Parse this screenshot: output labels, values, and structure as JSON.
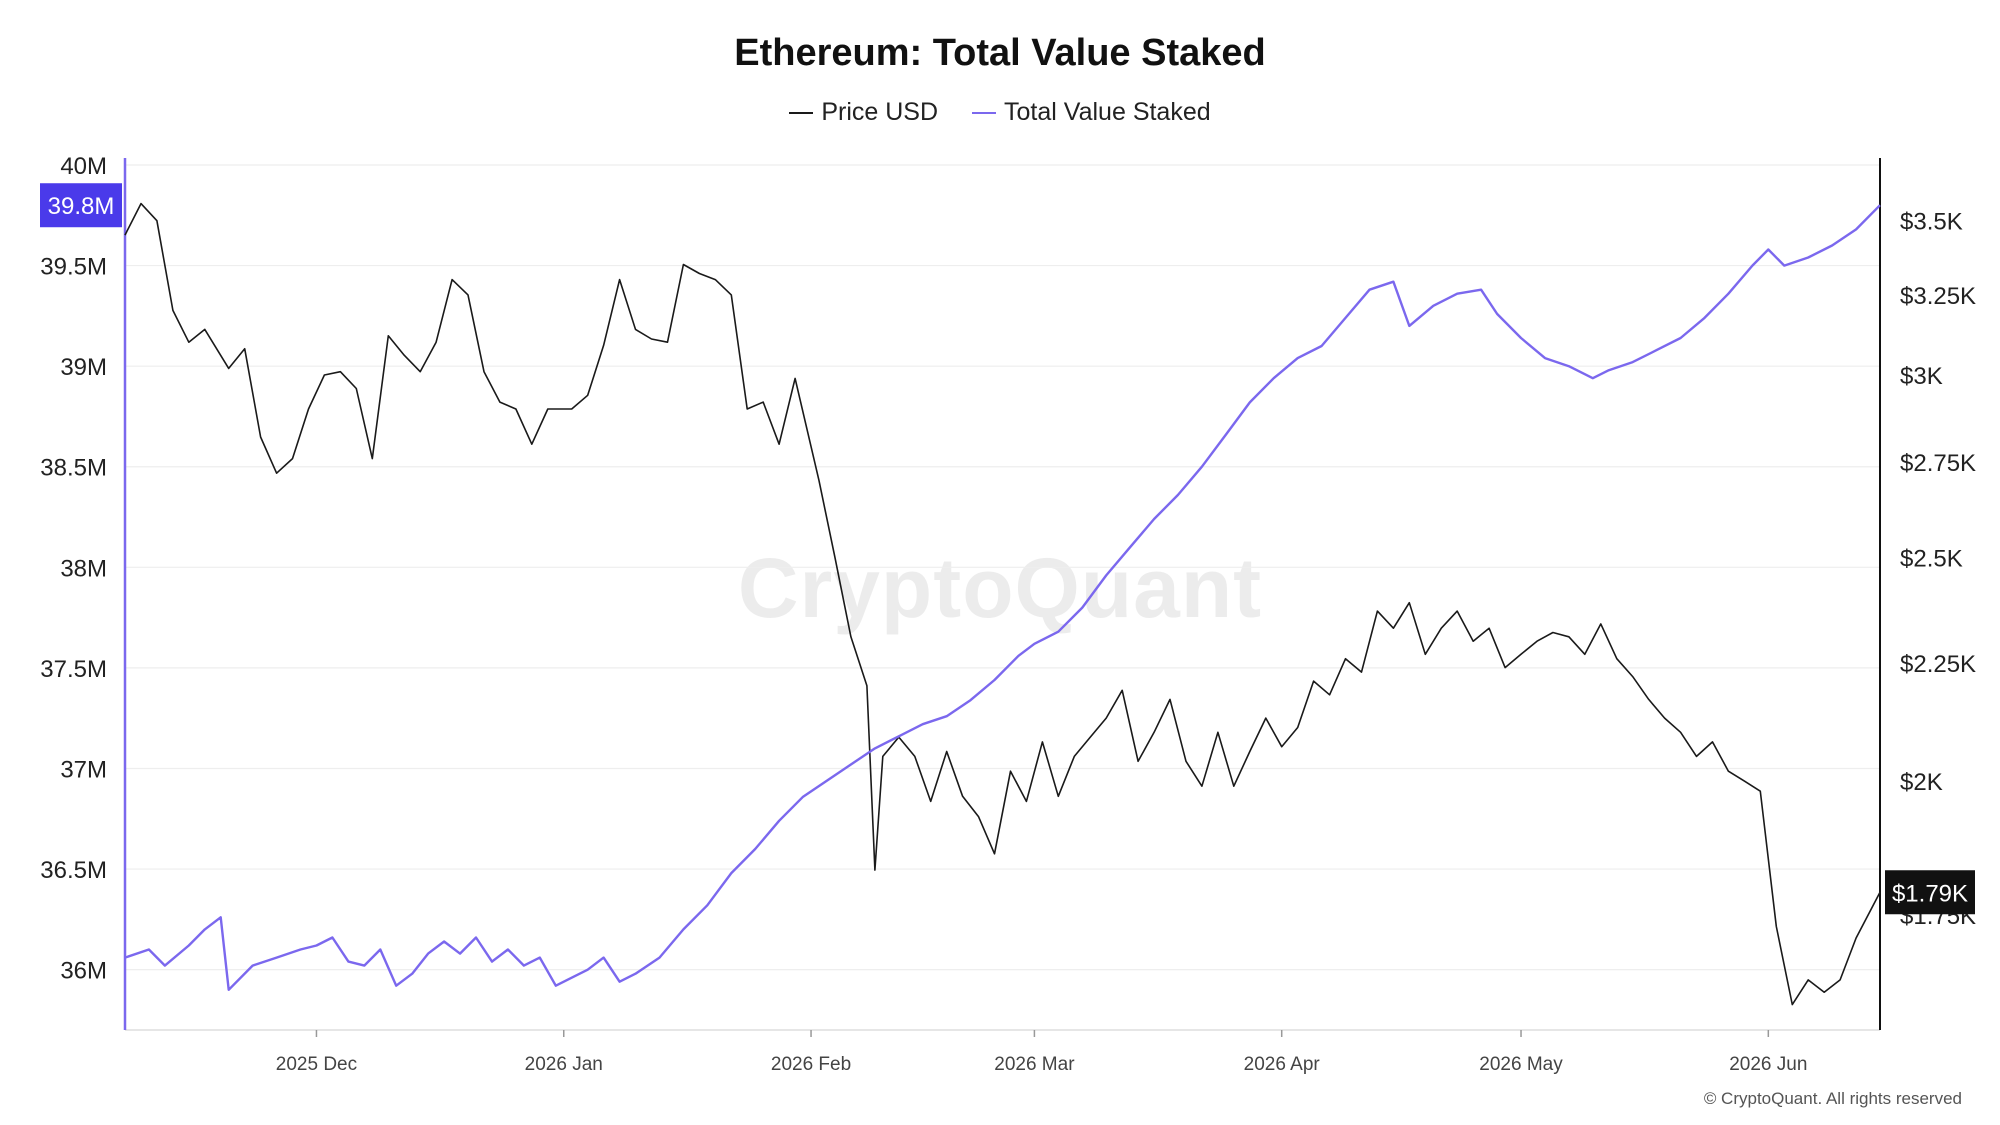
{
  "colors": {
    "price": "#1a1a1a",
    "staked": "#7b68ee",
    "left_axis": "#7b68ee",
    "left_badge": "#4a3aea",
    "right_badge": "#111111",
    "grid": "#eeeeee"
  },
  "header": {
    "title": "Ethereum: Total Value Staked"
  },
  "legend": {
    "items": [
      {
        "label": "Price USD",
        "color": "#1a1a1a"
      },
      {
        "label": "Total Value Staked",
        "color": "#7b68ee"
      }
    ]
  },
  "watermark": "CryptoQuant",
  "footer": {
    "copyright": "© CryptoQuant. All rights reserved"
  },
  "chart_data": {
    "type": "line",
    "title": "Ethereum: Total Value Staked",
    "grid": true,
    "legend_position": "top-center",
    "x_range": [
      "2025-11-07",
      "2026-06-15"
    ],
    "x_ticks": [
      {
        "date": "2025-12-01",
        "label": "2025 Dec"
      },
      {
        "date": "2026-01-01",
        "label": "2026 Jan"
      },
      {
        "date": "2026-02-01",
        "label": "2026 Feb"
      },
      {
        "date": "2026-03-01",
        "label": "2026 Mar"
      },
      {
        "date": "2026-04-01",
        "label": "2026 Apr"
      },
      {
        "date": "2026-05-01",
        "label": "2026 May"
      },
      {
        "date": "2026-06-01",
        "label": "2026 Jun"
      }
    ],
    "left_axis": {
      "ylim": [
        35.7,
        40.0
      ],
      "unit": "M",
      "ticks": [
        {
          "value": 36,
          "label": "36M"
        },
        {
          "value": 36.5,
          "label": "36.5M"
        },
        {
          "value": 37,
          "label": "37M"
        },
        {
          "value": 37.5,
          "label": "37.5M"
        },
        {
          "value": 38,
          "label": "38M"
        },
        {
          "value": 38.5,
          "label": "38.5M"
        },
        {
          "value": 39,
          "label": "39M"
        },
        {
          "value": 39.5,
          "label": "39.5M"
        },
        {
          "value": 40,
          "label": "40M"
        }
      ],
      "current_label": "39.8M",
      "current_value": 39.8
    },
    "right_axis": {
      "scale": "log",
      "ylim": [
        1560,
        3700
      ],
      "ticks": [
        {
          "value": 1750,
          "label": "$1.75K"
        },
        {
          "value": 2000,
          "label": "$2K"
        },
        {
          "value": 2250,
          "label": "$2.25K"
        },
        {
          "value": 2500,
          "label": "$2.5K"
        },
        {
          "value": 2750,
          "label": "$2.75K"
        },
        {
          "value": 3000,
          "label": "$3K"
        },
        {
          "value": 3250,
          "label": "$3.25K"
        },
        {
          "value": 3500,
          "label": "$3.5K"
        }
      ],
      "current_label": "$1.79K",
      "current_value": 1790
    },
    "series": [
      {
        "name": "Price USD",
        "axis": "right",
        "points": [
          [
            "2025-11-07",
            3450
          ],
          [
            "2025-11-09",
            3560
          ],
          [
            "2025-11-11",
            3500
          ],
          [
            "2025-11-13",
            3200
          ],
          [
            "2025-11-15",
            3100
          ],
          [
            "2025-11-17",
            3140
          ],
          [
            "2025-11-20",
            3020
          ],
          [
            "2025-11-22",
            3080
          ],
          [
            "2025-11-24",
            2820
          ],
          [
            "2025-11-26",
            2720
          ],
          [
            "2025-11-28",
            2760
          ],
          [
            "2025-11-30",
            2900
          ],
          [
            "2025-12-02",
            3000
          ],
          [
            "2025-12-04",
            3010
          ],
          [
            "2025-12-06",
            2960
          ],
          [
            "2025-12-08",
            2760
          ],
          [
            "2025-12-10",
            3120
          ],
          [
            "2025-12-12",
            3060
          ],
          [
            "2025-12-14",
            3010
          ],
          [
            "2025-12-16",
            3100
          ],
          [
            "2025-12-18",
            3300
          ],
          [
            "2025-12-20",
            3250
          ],
          [
            "2025-12-22",
            3010
          ],
          [
            "2025-12-24",
            2920
          ],
          [
            "2025-12-26",
            2900
          ],
          [
            "2025-12-28",
            2800
          ],
          [
            "2025-12-30",
            2900
          ],
          [
            "2026-01-02",
            2900
          ],
          [
            "2026-01-04",
            2940
          ],
          [
            "2026-01-06",
            3090
          ],
          [
            "2026-01-08",
            3300
          ],
          [
            "2026-01-10",
            3140
          ],
          [
            "2026-01-12",
            3110
          ],
          [
            "2026-01-14",
            3100
          ],
          [
            "2026-01-16",
            3350
          ],
          [
            "2026-01-18",
            3320
          ],
          [
            "2026-01-20",
            3300
          ],
          [
            "2026-01-22",
            3250
          ],
          [
            "2026-01-24",
            2900
          ],
          [
            "2026-01-26",
            2920
          ],
          [
            "2026-01-28",
            2800
          ],
          [
            "2026-01-30",
            2990
          ],
          [
            "2026-02-02",
            2700
          ],
          [
            "2026-02-04",
            2500
          ],
          [
            "2026-02-06",
            2310
          ],
          [
            "2026-02-08",
            2200
          ],
          [
            "2026-02-09",
            1830
          ],
          [
            "2026-02-10",
            2050
          ],
          [
            "2026-02-12",
            2090
          ],
          [
            "2026-02-14",
            2050
          ],
          [
            "2026-02-16",
            1960
          ],
          [
            "2026-02-18",
            2060
          ],
          [
            "2026-02-20",
            1970
          ],
          [
            "2026-02-22",
            1930
          ],
          [
            "2026-02-24",
            1860
          ],
          [
            "2026-02-26",
            2020
          ],
          [
            "2026-02-28",
            1960
          ],
          [
            "2026-03-02",
            2080
          ],
          [
            "2026-03-04",
            1970
          ],
          [
            "2026-03-06",
            2050
          ],
          [
            "2026-03-08",
            2090
          ],
          [
            "2026-03-10",
            2130
          ],
          [
            "2026-03-12",
            2190
          ],
          [
            "2026-03-14",
            2040
          ],
          [
            "2026-03-16",
            2100
          ],
          [
            "2026-03-18",
            2170
          ],
          [
            "2026-03-20",
            2040
          ],
          [
            "2026-03-22",
            1990
          ],
          [
            "2026-03-24",
            2100
          ],
          [
            "2026-03-26",
            1990
          ],
          [
            "2026-03-28",
            2060
          ],
          [
            "2026-03-30",
            2130
          ],
          [
            "2026-04-01",
            2070
          ],
          [
            "2026-04-03",
            2110
          ],
          [
            "2026-04-05",
            2210
          ],
          [
            "2026-04-07",
            2180
          ],
          [
            "2026-04-09",
            2260
          ],
          [
            "2026-04-11",
            2230
          ],
          [
            "2026-04-13",
            2370
          ],
          [
            "2026-04-15",
            2330
          ],
          [
            "2026-04-17",
            2390
          ],
          [
            "2026-04-19",
            2270
          ],
          [
            "2026-04-21",
            2330
          ],
          [
            "2026-04-23",
            2370
          ],
          [
            "2026-04-25",
            2300
          ],
          [
            "2026-04-27",
            2330
          ],
          [
            "2026-04-29",
            2240
          ],
          [
            "2026-05-01",
            2270
          ],
          [
            "2026-05-03",
            2300
          ],
          [
            "2026-05-05",
            2320
          ],
          [
            "2026-05-07",
            2310
          ],
          [
            "2026-05-09",
            2270
          ],
          [
            "2026-05-11",
            2340
          ],
          [
            "2026-05-13",
            2260
          ],
          [
            "2026-05-15",
            2220
          ],
          [
            "2026-05-17",
            2170
          ],
          [
            "2026-05-19",
            2130
          ],
          [
            "2026-05-21",
            2100
          ],
          [
            "2026-05-23",
            2050
          ],
          [
            "2026-05-25",
            2080
          ],
          [
            "2026-05-27",
            2020
          ],
          [
            "2026-05-29",
            2000
          ],
          [
            "2026-05-31",
            1980
          ],
          [
            "2026-06-02",
            1730
          ],
          [
            "2026-06-04",
            1600
          ],
          [
            "2026-06-06",
            1640
          ],
          [
            "2026-06-08",
            1620
          ],
          [
            "2026-06-10",
            1640
          ],
          [
            "2026-06-12",
            1710
          ],
          [
            "2026-06-15",
            1790
          ]
        ]
      },
      {
        "name": "Total Value Staked",
        "axis": "left",
        "points": [
          [
            "2025-11-07",
            36.06
          ],
          [
            "2025-11-10",
            36.1
          ],
          [
            "2025-11-12",
            36.02
          ],
          [
            "2025-11-15",
            36.12
          ],
          [
            "2025-11-17",
            36.2
          ],
          [
            "2025-11-19",
            36.26
          ],
          [
            "2025-11-20",
            35.9
          ],
          [
            "2025-11-23",
            36.02
          ],
          [
            "2025-11-26",
            36.06
          ],
          [
            "2025-11-29",
            36.1
          ],
          [
            "2025-12-01",
            36.12
          ],
          [
            "2025-12-03",
            36.16
          ],
          [
            "2025-12-05",
            36.04
          ],
          [
            "2025-12-07",
            36.02
          ],
          [
            "2025-12-09",
            36.1
          ],
          [
            "2025-12-11",
            35.92
          ],
          [
            "2025-12-13",
            35.98
          ],
          [
            "2025-12-15",
            36.08
          ],
          [
            "2025-12-17",
            36.14
          ],
          [
            "2025-12-19",
            36.08
          ],
          [
            "2025-12-21",
            36.16
          ],
          [
            "2025-12-23",
            36.04
          ],
          [
            "2025-12-25",
            36.1
          ],
          [
            "2025-12-27",
            36.02
          ],
          [
            "2025-12-29",
            36.06
          ],
          [
            "2025-12-31",
            35.92
          ],
          [
            "2026-01-02",
            35.96
          ],
          [
            "2026-01-04",
            36.0
          ],
          [
            "2026-01-06",
            36.06
          ],
          [
            "2026-01-08",
            35.94
          ],
          [
            "2026-01-10",
            35.98
          ],
          [
            "2026-01-13",
            36.06
          ],
          [
            "2026-01-16",
            36.2
          ],
          [
            "2026-01-19",
            36.32
          ],
          [
            "2026-01-22",
            36.48
          ],
          [
            "2026-01-25",
            36.6
          ],
          [
            "2026-01-28",
            36.74
          ],
          [
            "2026-01-31",
            36.86
          ],
          [
            "2026-02-03",
            36.94
          ],
          [
            "2026-02-06",
            37.02
          ],
          [
            "2026-02-09",
            37.1
          ],
          [
            "2026-02-12",
            37.16
          ],
          [
            "2026-02-15",
            37.22
          ],
          [
            "2026-02-18",
            37.26
          ],
          [
            "2026-02-21",
            37.34
          ],
          [
            "2026-02-24",
            37.44
          ],
          [
            "2026-02-27",
            37.56
          ],
          [
            "2026-03-01",
            37.62
          ],
          [
            "2026-03-04",
            37.68
          ],
          [
            "2026-03-07",
            37.8
          ],
          [
            "2026-03-10",
            37.96
          ],
          [
            "2026-03-13",
            38.1
          ],
          [
            "2026-03-16",
            38.24
          ],
          [
            "2026-03-19",
            38.36
          ],
          [
            "2026-03-22",
            38.5
          ],
          [
            "2026-03-25",
            38.66
          ],
          [
            "2026-03-28",
            38.82
          ],
          [
            "2026-03-31",
            38.94
          ],
          [
            "2026-04-03",
            39.04
          ],
          [
            "2026-04-06",
            39.1
          ],
          [
            "2026-04-09",
            39.24
          ],
          [
            "2026-04-12",
            39.38
          ],
          [
            "2026-04-15",
            39.42
          ],
          [
            "2026-04-17",
            39.2
          ],
          [
            "2026-04-20",
            39.3
          ],
          [
            "2026-04-23",
            39.36
          ],
          [
            "2026-04-26",
            39.38
          ],
          [
            "2026-04-28",
            39.26
          ],
          [
            "2026-05-01",
            39.14
          ],
          [
            "2026-05-04",
            39.04
          ],
          [
            "2026-05-07",
            39.0
          ],
          [
            "2026-05-10",
            38.94
          ],
          [
            "2026-05-12",
            38.98
          ],
          [
            "2026-05-15",
            39.02
          ],
          [
            "2026-05-18",
            39.08
          ],
          [
            "2026-05-21",
            39.14
          ],
          [
            "2026-05-24",
            39.24
          ],
          [
            "2026-05-27",
            39.36
          ],
          [
            "2026-05-30",
            39.5
          ],
          [
            "2026-06-01",
            39.58
          ],
          [
            "2026-06-03",
            39.5
          ],
          [
            "2026-06-06",
            39.54
          ],
          [
            "2026-06-09",
            39.6
          ],
          [
            "2026-06-12",
            39.68
          ],
          [
            "2026-06-15",
            39.8
          ]
        ]
      }
    ]
  }
}
